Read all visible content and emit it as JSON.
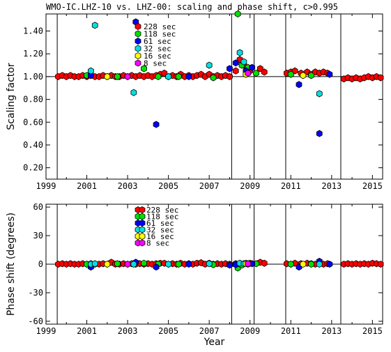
{
  "chart_data": [
    {
      "type": "scatter",
      "title": "WMO-IC.LHZ-10 vs. LHZ-00: scaling and phase shift, c>0.995",
      "xlabel": "",
      "ylabel": "Scaling factor",
      "xlim": [
        1999.0,
        2015.5
      ],
      "ylim": [
        0.1,
        1.55
      ],
      "x_ticks": [
        1999,
        2001,
        2003,
        2005,
        2007,
        2009,
        2011,
        2013,
        2015
      ],
      "x_tick_labels": [
        "1999",
        "2001",
        "2003",
        "2005",
        "2007",
        "2009",
        "2011",
        "2013",
        "2015"
      ],
      "y_ticks": [
        0.2,
        0.4,
        0.6,
        0.8,
        1.0,
        1.2,
        1.4
      ],
      "y_tick_labels": [
        "0.20",
        "0.40",
        "0.60",
        "0.80",
        "1.00",
        "1.20",
        "1.40"
      ],
      "reference_line": 1.0,
      "vertical_lines": [
        1999.55,
        2008.1,
        2009.2,
        2010.75,
        2013.45
      ],
      "legend": [
        {
          "label": "228 sec",
          "color": "#ff0000"
        },
        {
          "label": "118 sec",
          "color": "#00e000"
        },
        {
          "label": "61 sec",
          "color": "#0000ff"
        },
        {
          "label": "32 sec",
          "color": "#00e0e0"
        },
        {
          "label": "16 sec",
          "color": "#ffff00"
        },
        {
          "label": "8 sec",
          "color": "#ff00ff"
        }
      ],
      "series": [
        {
          "name": "228 sec",
          "color": "#ff0000",
          "x": [
            1999.6,
            1999.8,
            2000.0,
            2000.2,
            2000.4,
            2000.6,
            2000.8,
            2001.0,
            2001.2,
            2001.4,
            2001.6,
            2001.8,
            2002.0,
            2002.2,
            2002.4,
            2002.6,
            2002.8,
            2003.0,
            2003.2,
            2003.4,
            2003.6,
            2003.8,
            2004.0,
            2004.2,
            2004.4,
            2004.6,
            2004.8,
            2005.0,
            2005.2,
            2005.4,
            2005.6,
            2005.8,
            2006.0,
            2006.2,
            2006.4,
            2006.6,
            2006.8,
            2007.0,
            2007.2,
            2007.4,
            2007.6,
            2007.8,
            2008.0,
            2008.3,
            2008.5,
            2008.7,
            2009.0,
            2009.5,
            2009.7,
            2010.8,
            2011.0,
            2011.2,
            2011.5,
            2011.8,
            2012.0,
            2012.2,
            2012.4,
            2012.6,
            2012.8,
            2013.6,
            2013.8,
            2014.0,
            2014.2,
            2014.4,
            2014.6,
            2014.8,
            2015.0,
            2015.2,
            2015.4
          ],
          "y": [
            1.0,
            1.01,
            1.0,
            1.01,
            1.0,
            1.0,
            1.01,
            1.0,
            1.01,
            1.0,
            1.0,
            1.01,
            1.0,
            1.01,
            1.0,
            1.0,
            1.01,
            1.0,
            1.01,
            1.0,
            1.01,
            1.0,
            1.01,
            1.0,
            1.01,
            1.02,
            1.03,
            1.0,
            1.01,
            1.0,
            1.02,
            1.0,
            1.01,
            1.0,
            1.01,
            1.02,
            1.0,
            1.02,
            1.0,
            1.01,
            1.0,
            1.01,
            1.0,
            1.05,
            1.15,
            1.1,
            1.05,
            1.07,
            1.04,
            1.03,
            1.04,
            1.05,
            1.03,
            1.04,
            1.02,
            1.04,
            1.03,
            1.04,
            1.03,
            0.98,
            0.99,
            0.98,
            0.99,
            0.98,
            0.99,
            1.0,
            0.99,
            1.0,
            0.99
          ]
        },
        {
          "name": "118 sec",
          "color": "#00e000",
          "x": [
            2001.0,
            2002.5,
            2003.8,
            2004.5,
            2005.5,
            2007.2,
            2008.4,
            2008.6,
            2008.9,
            2009.3,
            2011.0,
            2012.0
          ],
          "y": [
            1.01,
            1.0,
            1.07,
            1.0,
            1.0,
            0.99,
            1.55,
            1.1,
            1.08,
            1.03,
            1.02,
            1.01
          ]
        },
        {
          "name": "61 sec",
          "color": "#0000ff",
          "x": [
            2001.2,
            2003.4,
            2004.4,
            2006.0,
            2008.0,
            2008.3,
            2008.8,
            2009.1,
            2011.4,
            2012.4,
            2012.9
          ],
          "y": [
            1.01,
            1.48,
            0.58,
            1.0,
            1.07,
            1.12,
            1.05,
            1.08,
            0.93,
            0.5,
            1.02
          ]
        },
        {
          "name": "32 sec",
          "color": "#00e0e0",
          "x": [
            2001.2,
            2001.4,
            2003.3,
            2005.0,
            2007.0,
            2008.5,
            2008.7,
            2012.4
          ],
          "y": [
            1.05,
            1.45,
            0.86,
            1.0,
            1.1,
            1.21,
            1.13,
            0.85
          ]
        },
        {
          "name": "16 sec",
          "color": "#ffff00",
          "x": [
            2002.0,
            2008.8,
            2011.6
          ],
          "y": [
            1.0,
            1.02,
            1.01
          ]
        },
        {
          "name": "8 sec",
          "color": "#ff00ff",
          "x": [
            2003.0,
            2008.9
          ],
          "y": [
            1.0,
            1.03
          ]
        }
      ]
    },
    {
      "type": "scatter",
      "title": "",
      "xlabel": "Year",
      "ylabel": "Phase shift (degrees)",
      "xlim": [
        1999.0,
        2015.5
      ],
      "ylim": [
        -63,
        63
      ],
      "x_ticks": [
        1999,
        2001,
        2003,
        2005,
        2007,
        2009,
        2011,
        2013,
        2015
      ],
      "x_tick_labels": [
        "1999",
        "2001",
        "2003",
        "2005",
        "2007",
        "2009",
        "2011",
        "2013",
        "2015"
      ],
      "y_ticks": [
        -60,
        -30,
        0,
        30,
        60
      ],
      "y_tick_labels": [
        "-60",
        "-30",
        "0",
        "30",
        "60"
      ],
      "reference_line": 0,
      "vertical_lines": [
        1999.55,
        2008.1,
        2009.2,
        2010.75,
        2013.45
      ],
      "legend": [
        {
          "label": "228 sec",
          "color": "#ff0000"
        },
        {
          "label": "118 sec",
          "color": "#00e000"
        },
        {
          "label": "61 sec",
          "color": "#0000ff"
        },
        {
          "label": "32 sec",
          "color": "#00e0e0"
        },
        {
          "label": "16 sec",
          "color": "#ffff00"
        },
        {
          "label": "8 sec",
          "color": "#ff00ff"
        }
      ],
      "series": [
        {
          "name": "228 sec",
          "color": "#ff0000",
          "x": [
            1999.6,
            1999.8,
            2000.0,
            2000.2,
            2000.4,
            2000.6,
            2000.8,
            2001.0,
            2001.2,
            2001.4,
            2001.6,
            2001.8,
            2002.0,
            2002.2,
            2002.4,
            2002.6,
            2002.8,
            2003.0,
            2003.2,
            2003.4,
            2003.6,
            2003.8,
            2004.0,
            2004.2,
            2004.4,
            2004.6,
            2004.8,
            2005.0,
            2005.2,
            2005.4,
            2005.6,
            2005.8,
            2006.0,
            2006.2,
            2006.4,
            2006.6,
            2006.8,
            2007.0,
            2007.2,
            2007.4,
            2007.6,
            2007.8,
            2008.0,
            2008.3,
            2008.5,
            2008.7,
            2009.0,
            2009.5,
            2009.7,
            2010.8,
            2011.0,
            2011.2,
            2011.5,
            2011.8,
            2012.0,
            2012.2,
            2012.4,
            2012.6,
            2012.8,
            2013.6,
            2013.8,
            2014.0,
            2014.2,
            2014.4,
            2014.6,
            2014.8,
            2015.0,
            2015.2,
            2015.4
          ],
          "y": [
            0,
            0.5,
            0,
            0.5,
            0,
            0,
            0.5,
            0,
            0.5,
            0,
            0,
            0.5,
            0,
            2,
            0,
            0,
            0.5,
            0,
            0.5,
            0,
            0.5,
            0,
            0.5,
            0,
            0.5,
            1,
            1,
            0,
            0.5,
            0,
            1,
            0,
            0.5,
            0,
            1,
            1.5,
            0,
            1,
            0,
            0.5,
            0,
            0.5,
            0,
            0.5,
            1,
            0.5,
            1,
            2,
            1,
            0.5,
            0,
            1,
            0.5,
            1,
            0.5,
            0,
            1,
            0,
            0.5,
            0,
            0.5,
            0,
            0.5,
            0,
            0.5,
            0,
            1,
            0.5,
            0
          ]
        },
        {
          "name": "118 sec",
          "color": "#00e000",
          "x": [
            2001.0,
            2002.5,
            2003.8,
            2004.5,
            2005.5,
            2007.2,
            2008.4,
            2008.6,
            2008.9,
            2009.3,
            2011.0,
            2012.0
          ],
          "y": [
            0,
            0.5,
            1,
            0,
            0,
            -0.5,
            -4,
            -1,
            0,
            0.5,
            0,
            0
          ]
        },
        {
          "name": "61 sec",
          "color": "#0000ff",
          "x": [
            2001.2,
            2003.4,
            2004.4,
            2006.0,
            2008.0,
            2008.3,
            2008.8,
            2009.1,
            2011.4,
            2012.4,
            2012.9
          ],
          "y": [
            -3,
            2,
            -3,
            0,
            -1,
            -0.5,
            1,
            0.5,
            -3,
            3,
            0
          ]
        },
        {
          "name": "32 sec",
          "color": "#00e0e0",
          "x": [
            2001.2,
            2001.4,
            2003.3,
            2005.0,
            2007.0,
            2008.5,
            2008.7,
            2012.4
          ],
          "y": [
            0,
            0.5,
            0,
            0,
            0.5,
            1,
            0.5,
            0
          ]
        },
        {
          "name": "16 sec",
          "color": "#ffff00",
          "x": [
            2002.0,
            2008.8,
            2011.6
          ],
          "y": [
            0,
            0.5,
            0
          ]
        },
        {
          "name": "8 sec",
          "color": "#ff00ff",
          "x": [
            2003.0,
            2008.9
          ],
          "y": [
            0,
            0.5
          ]
        }
      ]
    }
  ]
}
